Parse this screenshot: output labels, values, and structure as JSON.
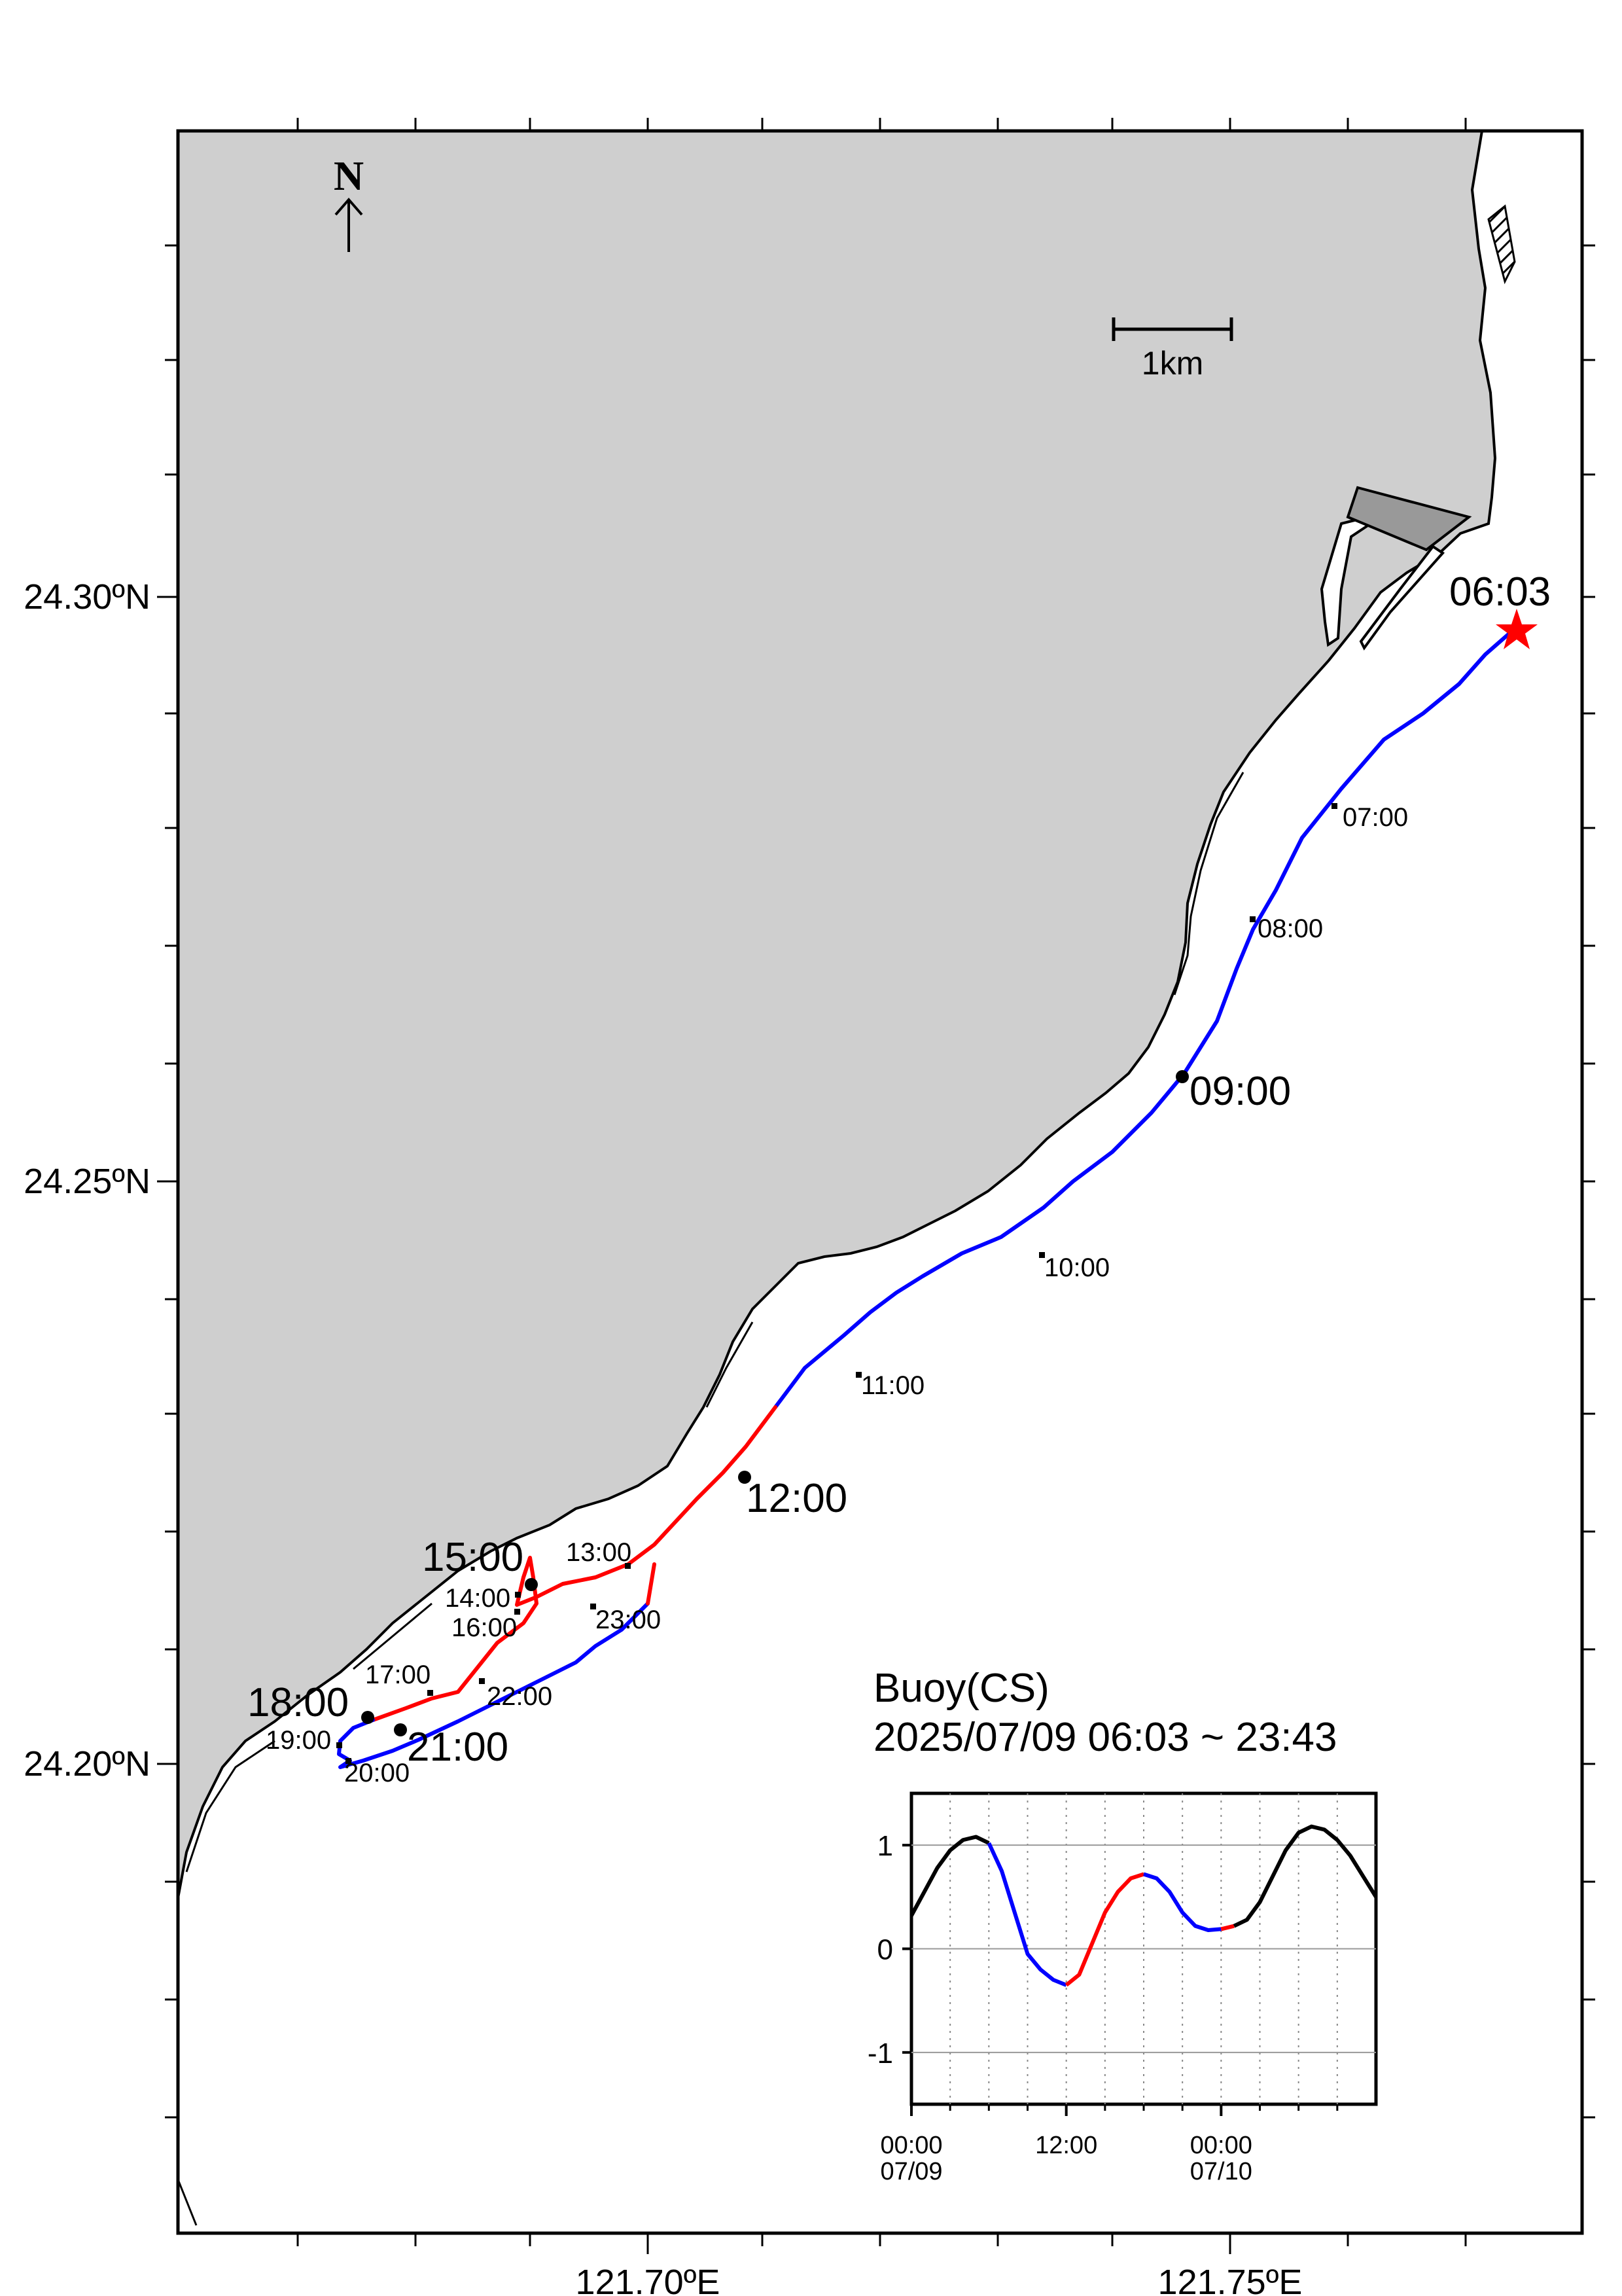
{
  "map": {
    "lat_labels": [
      "24.30ºN",
      "24.25ºN",
      "24.20ºN"
    ],
    "lon_labels": [
      "121.70ºE",
      "121.75ºE"
    ],
    "north_label": "N",
    "scale_label": "1km",
    "start_label": "06:03",
    "big_times": [
      "09:00",
      "12:00",
      "15:00",
      "18:00",
      "21:00"
    ],
    "small_times": [
      "07:00",
      "08:00",
      "10:00",
      "11:00",
      "13:00",
      "14:00",
      "16:00",
      "17:00",
      "19:00",
      "20:00",
      "22:00",
      "23:00"
    ]
  },
  "inset": {
    "title": "Buoy(CS)",
    "subtitle": "2025/07/09 06:03 ~ 23:43",
    "y_ticks": [
      "1",
      "0",
      "-1"
    ],
    "x_ticks": [
      {
        "time": "00:00",
        "date": "07/09"
      },
      {
        "time": "12:00",
        "date": ""
      },
      {
        "time": "00:00",
        "date": "07/10"
      }
    ]
  },
  "chart_data": {
    "type": "line",
    "title": "Buoy(CS)",
    "subtitle": "2025/07/09 06:03 ~ 23:43",
    "xlabel": "",
    "ylabel": "",
    "x_unit": "hours from 2025/07/09 00:00",
    "ylim": [
      -1.5,
      1.5
    ],
    "xlim": [
      0,
      36
    ],
    "grid": true,
    "series": [
      {
        "color": "#000000",
        "x": [
          0,
          1,
          2,
          3,
          4,
          5,
          6
        ],
        "y": [
          0.32,
          0.55,
          0.78,
          0.95,
          1.05,
          1.08,
          1.02
        ]
      },
      {
        "color": "#0000ff",
        "x": [
          6,
          7,
          8,
          9,
          10,
          11,
          12
        ],
        "y": [
          1.02,
          0.75,
          0.35,
          -0.05,
          -0.2,
          -0.3,
          -0.35
        ]
      },
      {
        "color": "#ff0000",
        "x": [
          12,
          13,
          14,
          15,
          16,
          17,
          18
        ],
        "y": [
          -0.35,
          -0.25,
          0.05,
          0.35,
          0.55,
          0.68,
          0.72
        ]
      },
      {
        "color": "#0000ff",
        "x": [
          18,
          19,
          20,
          21,
          22,
          23,
          24
        ],
        "y": [
          0.72,
          0.68,
          0.55,
          0.35,
          0.22,
          0.18,
          0.19
        ]
      },
      {
        "color": "#ff0000",
        "x": [
          24,
          25
        ],
        "y": [
          0.19,
          0.22
        ]
      },
      {
        "color": "#000000",
        "x": [
          25,
          26,
          27,
          28,
          29,
          30,
          31,
          32,
          33,
          34,
          35,
          36
        ],
        "y": [
          0.22,
          0.28,
          0.45,
          0.7,
          0.95,
          1.12,
          1.18,
          1.15,
          1.05,
          0.9,
          0.7,
          0.5
        ]
      }
    ]
  },
  "colors": {
    "land": "#cfcfcf",
    "ebb_track": "#0000ff",
    "flood_track": "#ff0000",
    "start_marker": "#ff0000"
  }
}
